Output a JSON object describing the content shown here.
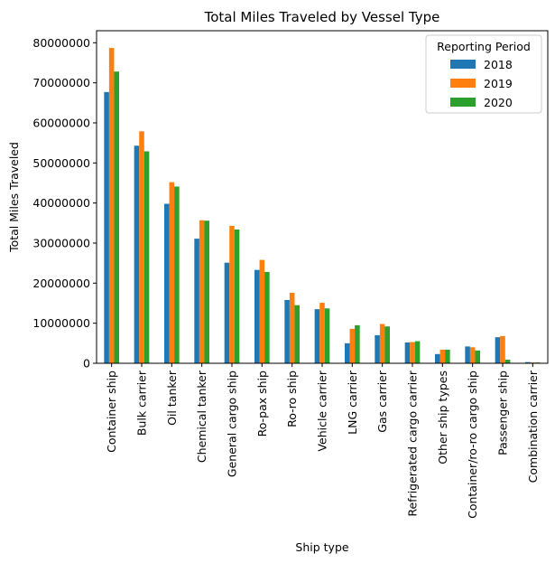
{
  "chart_data": {
    "type": "bar",
    "title": "Total Miles Traveled by Vessel Type",
    "xlabel": "Ship type",
    "ylabel": "Total Miles Traveled",
    "ylim": [
      0,
      83000000
    ],
    "yticks": [
      0,
      10000000,
      20000000,
      30000000,
      40000000,
      50000000,
      60000000,
      70000000,
      80000000
    ],
    "ytick_labels": [
      "0",
      "10000000",
      "20000000",
      "30000000",
      "40000000",
      "50000000",
      "60000000",
      "70000000",
      "80000000"
    ],
    "categories": [
      "Container ship",
      "Bulk carrier",
      "Oil tanker",
      "Chemical tanker",
      "General cargo ship",
      "Ro-pax ship",
      "Ro-ro ship",
      "Vehicle carrier",
      "LNG carrier",
      "Gas carrier",
      "Refrigerated cargo carrier",
      "Other ship types",
      "Container/ro-ro cargo ship",
      "Passenger ship",
      "Combination carrier"
    ],
    "legend_title": "Reporting Period",
    "legend_position": "top-right",
    "grid": false,
    "series": [
      {
        "name": "2018",
        "color": "#1f77b4",
        "values": [
          67700000,
          54300000,
          39800000,
          31100000,
          25100000,
          23300000,
          15800000,
          13500000,
          5000000,
          7000000,
          5200000,
          2300000,
          4200000,
          6500000,
          300000
        ]
      },
      {
        "name": "2019",
        "color": "#ff7f0e",
        "values": [
          78700000,
          57900000,
          45200000,
          35700000,
          34300000,
          25800000,
          17600000,
          15100000,
          8600000,
          9800000,
          5300000,
          3400000,
          4000000,
          6800000,
          200000
        ]
      },
      {
        "name": "2020",
        "color": "#2ca02c",
        "values": [
          72800000,
          52900000,
          44100000,
          35600000,
          33400000,
          22800000,
          14500000,
          13700000,
          9500000,
          9200000,
          5500000,
          3400000,
          3200000,
          900000,
          200000
        ]
      }
    ]
  }
}
